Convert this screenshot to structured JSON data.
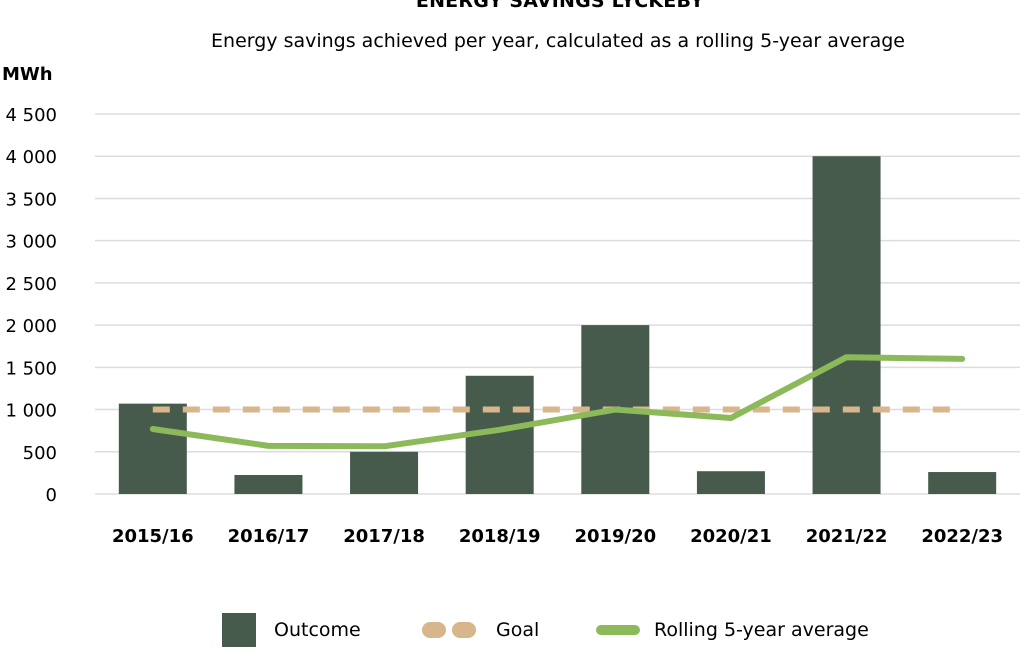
{
  "title": "ENERGY SAVINGS LYCKEBY",
  "subtitle": "Energy savings achieved per year, calculated as a rolling 5-year average",
  "colors": {
    "outcome": "#475b4d",
    "goal": "#d8b68c",
    "rolling": "#8cba5b",
    "grid": "#dddddd"
  },
  "legend": {
    "outcome": "Outcome",
    "goal": "Goal",
    "rolling": "Rolling 5-year average"
  },
  "chart_data": {
    "type": "bar",
    "title": "ENERGY SAVINGS LYCKEBY",
    "subtitle": "Energy savings achieved per year, calculated as a rolling 5-year average",
    "ylabel": "MWh",
    "xlabel": "",
    "ylim": [
      0,
      4500
    ],
    "yticks": [
      0,
      500,
      1000,
      1500,
      2000,
      2500,
      3000,
      3500,
      4000,
      4500
    ],
    "ytick_labels": [
      "0",
      "500",
      "1 000",
      "1 500",
      "2 000",
      "2 500",
      "3 000",
      "3 500",
      "4 000",
      "4 500"
    ],
    "categories": [
      "2015/16",
      "2016/17",
      "2017/18",
      "2018/19",
      "2019/20",
      "2020/21",
      "2021/22",
      "2022/23"
    ],
    "series": [
      {
        "name": "Outcome",
        "type": "bar",
        "values": [
          1070,
          225,
          500,
          1400,
          2000,
          270,
          4000,
          260
        ]
      },
      {
        "name": "Goal",
        "type": "line-dashed",
        "values": [
          1000,
          1000,
          1000,
          1000,
          1000,
          1000,
          1000,
          1000
        ]
      },
      {
        "name": "Rolling 5-year average",
        "type": "line",
        "values": [
          770,
          570,
          565,
          760,
          1000,
          900,
          1620,
          1600
        ]
      }
    ],
    "grid": true,
    "legend_position": "bottom"
  }
}
